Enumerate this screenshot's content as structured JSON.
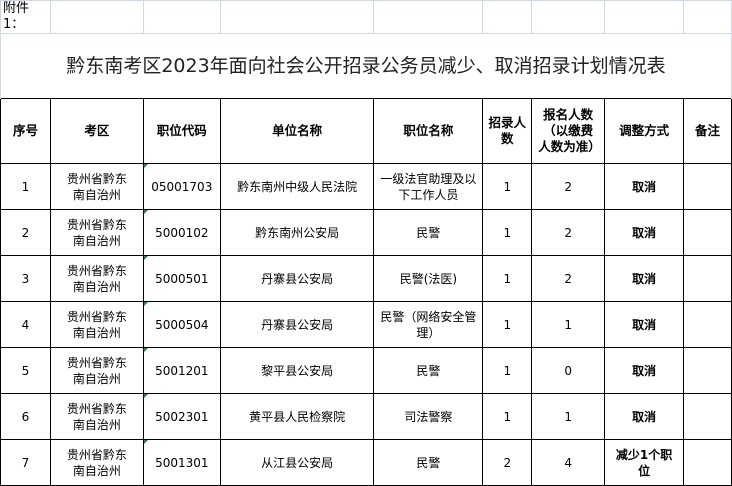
{
  "attachment_label": "附件1：",
  "title": "黔东南考区2023年面向社会公开招录公务员减少、取消招录计划情况表",
  "headers": [
    "序号",
    "考区",
    "职位代码",
    "单位名称",
    "职位名称",
    "招录人数",
    "报名人数（以缴费人数为准）",
    "调整方式",
    "备注"
  ],
  "rows": [
    {
      "no": "1",
      "area": "贵州省黔东南自治州",
      "code": "05001703",
      "unit": "黔东南州中级人民法院",
      "position": "一级法官助理及以下工作人员",
      "quota": "1",
      "applicants": "2",
      "adjust": "取消",
      "note": ""
    },
    {
      "no": "2",
      "area": "贵州省黔东南自治州",
      "code": "5000102",
      "unit": "黔东南州公安局",
      "position": "民警",
      "quota": "1",
      "applicants": "2",
      "adjust": "取消",
      "note": ""
    },
    {
      "no": "3",
      "area": "贵州省黔东南自治州",
      "code": "5000501",
      "unit": "丹寨县公安局",
      "position": "民警(法医)",
      "quota": "1",
      "applicants": "2",
      "adjust": "取消",
      "note": ""
    },
    {
      "no": "4",
      "area": "贵州省黔东南自治州",
      "code": "5000504",
      "unit": "丹寨县公安局",
      "position": "民警（网络安全管理）",
      "quota": "1",
      "applicants": "1",
      "adjust": "取消",
      "note": ""
    },
    {
      "no": "5",
      "area": "贵州省黔东南自治州",
      "code": "5001201",
      "unit": "黎平县公安局",
      "position": "民警",
      "quota": "1",
      "applicants": "0",
      "adjust": "取消",
      "note": ""
    },
    {
      "no": "6",
      "area": "贵州省黔东南自治州",
      "code": "5002301",
      "unit": "黄平县人民检察院",
      "position": "司法警察",
      "quota": "1",
      "applicants": "1",
      "adjust": "取消",
      "note": ""
    },
    {
      "no": "7",
      "area": "贵州省黔东南自治州",
      "code": "5001301",
      "unit": "从江县公安局",
      "position": "民警",
      "quota": "2",
      "applicants": "4",
      "adjust": "减少1个职位",
      "note": ""
    }
  ]
}
